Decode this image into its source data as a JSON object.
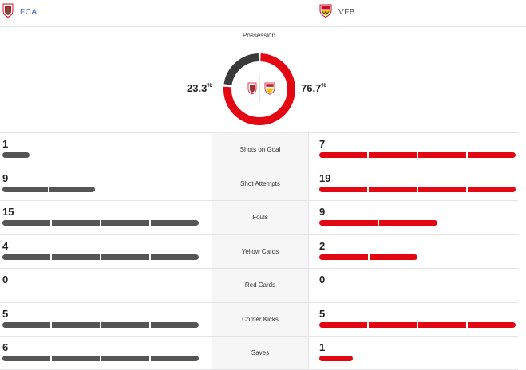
{
  "colors": {
    "home": "#555555",
    "home_donut": "#3a3a3a",
    "away": "#e30613",
    "away_donut": "#e30613"
  },
  "home_team": {
    "name": "FCA",
    "crest": "fca-crest-icon"
  },
  "away_team": {
    "name": "VFB",
    "crest": "vfb-crest-icon"
  },
  "possession": {
    "title": "Possession",
    "home_value": "23.3",
    "away_value": "76.7",
    "unit": "%",
    "home_fraction": 0.233,
    "away_fraction": 0.767
  },
  "stats": [
    {
      "label": "Shots on Goal",
      "home": "1",
      "away": "7",
      "home_level": 0.14,
      "away_level": 1.0
    },
    {
      "label": "Shot Attempts",
      "home": "9",
      "away": "19",
      "home_level": 0.47,
      "away_level": 1.0
    },
    {
      "label": "Fouls",
      "home": "15",
      "away": "9",
      "home_level": 1.0,
      "away_level": 0.6
    },
    {
      "label": "Yellow Cards",
      "home": "4",
      "away": "2",
      "home_level": 1.0,
      "away_level": 0.5
    },
    {
      "label": "Red Cards",
      "home": "0",
      "away": "0",
      "home_level": 0,
      "away_level": 0
    },
    {
      "label": "Corner Kicks",
      "home": "5",
      "away": "5",
      "home_level": 1.0,
      "away_level": 1.0
    },
    {
      "label": "Saves",
      "home": "6",
      "away": "1",
      "home_level": 1.0,
      "away_level": 0.17
    }
  ]
}
